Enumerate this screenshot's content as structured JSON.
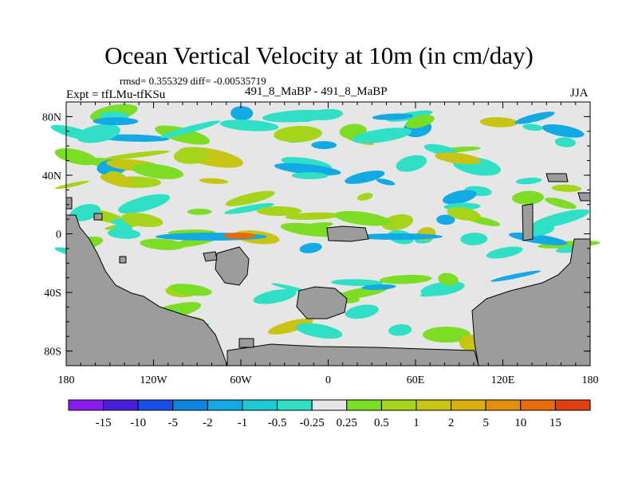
{
  "chart_data": {
    "type": "heatmap",
    "title": "Ocean Vertical Velocity at 10m (in cm/day)",
    "stats_line": "rmsd= 0.355329 diff= -0.00535719",
    "expt_line": "Expt = tfLMu-tfKSu",
    "experiment_label": "491_8_MaBP - 491_8_MaBP",
    "season": "JJA",
    "xlim": [
      -180,
      180
    ],
    "ylim": [
      -90,
      90
    ],
    "x_ticks": [
      {
        "value": -180,
        "label": "180"
      },
      {
        "value": -120,
        "label": "120W"
      },
      {
        "value": -60,
        "label": "60W"
      },
      {
        "value": 0,
        "label": "0"
      },
      {
        "value": 60,
        "label": "60E"
      },
      {
        "value": 120,
        "label": "120E"
      },
      {
        "value": 180,
        "label": "180"
      }
    ],
    "y_ticks": [
      {
        "value": 80,
        "label": "80N"
      },
      {
        "value": 40,
        "label": "40N"
      },
      {
        "value": 0,
        "label": "0"
      },
      {
        "value": -40,
        "label": "40S"
      },
      {
        "value": -80,
        "label": "80S"
      }
    ],
    "colorbar": {
      "colors": [
        "#8a1bf0",
        "#4a1edc",
        "#1c4fe6",
        "#0f85e0",
        "#12a9e4",
        "#1ccbd2",
        "#2fe0c6",
        "#e6e6e6",
        "#7ddc24",
        "#a6d41a",
        "#c8c414",
        "#d8b00e",
        "#e2900c",
        "#e86a08",
        "#e04010"
      ],
      "labels": [
        "-15",
        "-10",
        "-5",
        "-2",
        "-1",
        "-0.5",
        "-0.25",
        "0.25",
        "0.5",
        "1",
        "2",
        "5",
        "10",
        "15"
      ]
    },
    "field_colors": {
      "background": "#e6e6e6",
      "land": "#9c9c9c",
      "cyan": "#2fe0c6",
      "blue": "#12a9e4",
      "green": "#7ddc24",
      "olive": "#a6d41a",
      "yellow": "#c8c414"
    }
  }
}
